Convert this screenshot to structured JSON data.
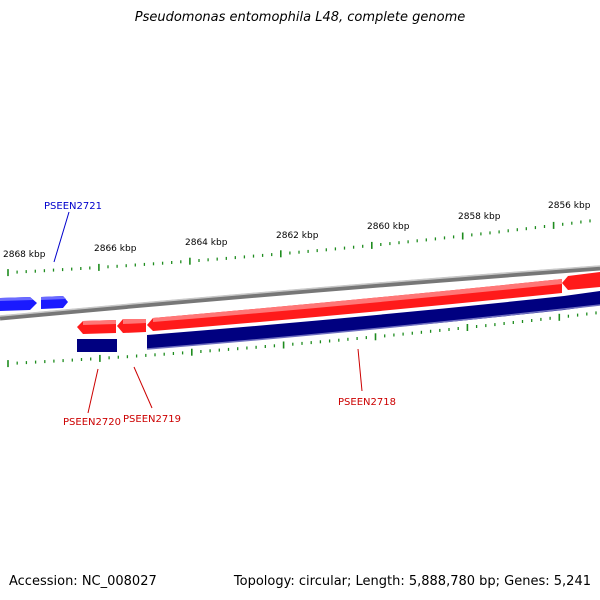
{
  "title": "Pseudomonas entomophila L48, complete genome",
  "footer": {
    "accession": "Accession: NC_008027",
    "summary": "Topology: circular; Length: 5,888,780 bp; Genes: 5,241"
  },
  "colors": {
    "backbone": "#8a8a8a",
    "forward_gene": "#1a1aff",
    "reverse_gene": "#ff1a1a",
    "cds_band": "#000080",
    "tick": "#1e8c1e",
    "forward_label": "#0000cc",
    "reverse_label": "#cc0000"
  },
  "ruler_labels": [
    "2868 kbp",
    "2866 kbp",
    "2864 kbp",
    "2862 kbp",
    "2860 kbp",
    "2858 kbp",
    "2856 kbp"
  ],
  "genes": [
    {
      "name": "PSEEN2721",
      "strand": "forward"
    },
    {
      "name": "PSEEN2720",
      "strand": "reverse"
    },
    {
      "name": "PSEEN2719",
      "strand": "reverse"
    },
    {
      "name": "PSEEN2718",
      "strand": "reverse"
    }
  ]
}
